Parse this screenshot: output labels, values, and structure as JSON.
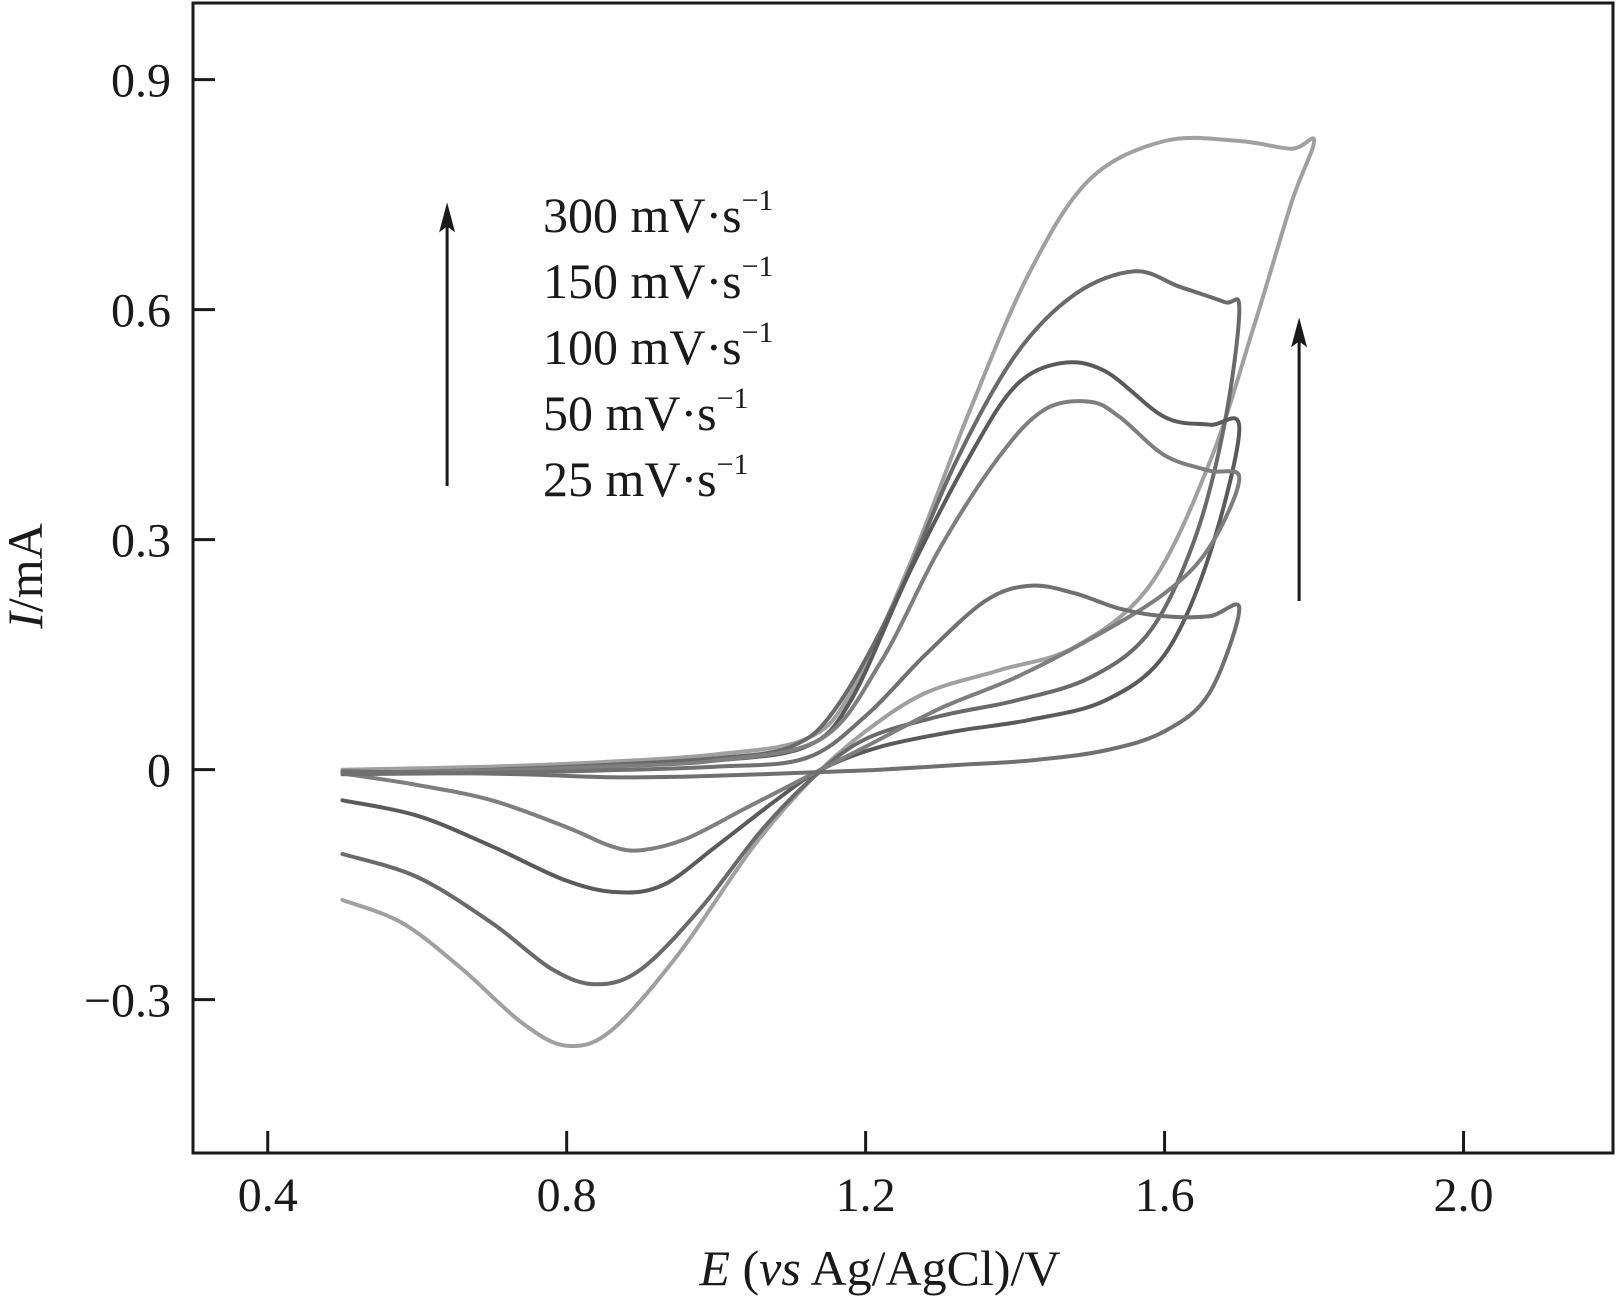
{
  "chart_data": {
    "type": "line",
    "title": "",
    "xlabel": "E (vs Ag/AgCl)/V",
    "xlabel_parts": {
      "italic_e": "E",
      "open": " (",
      "italic_vs": "vs",
      "rest": " Ag/AgCl)/V"
    },
    "ylabel": "I/mA",
    "ylabel_parts": {
      "italic_i": "I",
      "rest": "/mA"
    },
    "xlim": [
      0.3,
      2.2
    ],
    "ylim": [
      -0.5,
      1.0
    ],
    "xticks": [
      0.4,
      0.8,
      1.2,
      1.6,
      2.0
    ],
    "xtick_labels": [
      "0.4",
      "0.8",
      "1.2",
      "1.6",
      "2.0"
    ],
    "yticks": [
      -0.3,
      0,
      0.3,
      0.6,
      0.9
    ],
    "ytick_labels": [
      "−0.3",
      "0",
      "0.3",
      "0.6",
      "0.9"
    ],
    "legend": [
      "300 mV·s⁻¹",
      "150 mV·s⁻¹",
      "100 mV·s⁻¹",
      "50 mV·s⁻¹",
      "25 mV·s⁻¹"
    ],
    "legend_parts": [
      {
        "base": "300 mV·s",
        "sup": "−1"
      },
      {
        "base": "150 mV·s",
        "sup": "−1"
      },
      {
        "base": "100 mV·s",
        "sup": "−1"
      },
      {
        "base": "50 mV·s",
        "sup": "−1"
      },
      {
        "base": "25 mV·s",
        "sup": "−1"
      }
    ],
    "annotations": [
      "arrow indicating increasing scan rate",
      "arrow indicating increasing current"
    ],
    "arrows": [
      {
        "x": 0.64,
        "y_from": 0.37,
        "y_to": 0.74
      },
      {
        "x": 1.78,
        "y_from": 0.22,
        "y_to": 0.59
      }
    ],
    "series": [
      {
        "name": "300 mV·s⁻¹",
        "color": "#a0a0a0",
        "points": [
          [
            0.5,
            -0.17
          ],
          [
            0.58,
            -0.2
          ],
          [
            0.66,
            -0.26
          ],
          [
            0.74,
            -0.33
          ],
          [
            0.8,
            -0.36
          ],
          [
            0.86,
            -0.34
          ],
          [
            0.95,
            -0.24
          ],
          [
            1.05,
            -0.1
          ],
          [
            1.13,
            -0.01
          ],
          [
            1.2,
            0.05
          ],
          [
            1.28,
            0.1
          ],
          [
            1.38,
            0.13
          ],
          [
            1.48,
            0.16
          ],
          [
            1.58,
            0.24
          ],
          [
            1.66,
            0.4
          ],
          [
            1.72,
            0.58
          ],
          [
            1.77,
            0.74
          ],
          [
            1.8,
            0.82
          ],
          [
            1.77,
            0.81
          ],
          [
            1.7,
            0.82
          ],
          [
            1.6,
            0.82
          ],
          [
            1.5,
            0.77
          ],
          [
            1.42,
            0.65
          ],
          [
            1.34,
            0.47
          ],
          [
            1.26,
            0.27
          ],
          [
            1.18,
            0.1
          ],
          [
            1.12,
            0.04
          ],
          [
            1.0,
            0.02
          ],
          [
            0.85,
            0.01
          ],
          [
            0.7,
            0.004
          ],
          [
            0.5,
            0.0
          ]
        ]
      },
      {
        "name": "150 mV·s⁻¹",
        "color": "#6a6a6a",
        "points": [
          [
            0.5,
            -0.11
          ],
          [
            0.6,
            -0.14
          ],
          [
            0.7,
            -0.2
          ],
          [
            0.78,
            -0.26
          ],
          [
            0.84,
            -0.28
          ],
          [
            0.9,
            -0.26
          ],
          [
            0.98,
            -0.18
          ],
          [
            1.06,
            -0.08
          ],
          [
            1.13,
            -0.01
          ],
          [
            1.2,
            0.04
          ],
          [
            1.3,
            0.07
          ],
          [
            1.4,
            0.09
          ],
          [
            1.5,
            0.12
          ],
          [
            1.58,
            0.18
          ],
          [
            1.64,
            0.3
          ],
          [
            1.68,
            0.45
          ],
          [
            1.7,
            0.6
          ],
          [
            1.68,
            0.61
          ],
          [
            1.62,
            0.63
          ],
          [
            1.56,
            0.65
          ],
          [
            1.48,
            0.62
          ],
          [
            1.4,
            0.54
          ],
          [
            1.32,
            0.4
          ],
          [
            1.24,
            0.22
          ],
          [
            1.16,
            0.08
          ],
          [
            1.1,
            0.03
          ],
          [
            1.0,
            0.015
          ],
          [
            0.85,
            0.006
          ],
          [
            0.7,
            0.0
          ],
          [
            0.5,
            -0.005
          ]
        ]
      },
      {
        "name": "100 mV·s⁻¹",
        "color": "#5a5a5a",
        "points": [
          [
            0.5,
            -0.04
          ],
          [
            0.6,
            -0.06
          ],
          [
            0.7,
            -0.1
          ],
          [
            0.8,
            -0.145
          ],
          [
            0.87,
            -0.16
          ],
          [
            0.93,
            -0.15
          ],
          [
            1.0,
            -0.1
          ],
          [
            1.08,
            -0.04
          ],
          [
            1.14,
            0.0
          ],
          [
            1.22,
            0.03
          ],
          [
            1.32,
            0.05
          ],
          [
            1.42,
            0.065
          ],
          [
            1.52,
            0.09
          ],
          [
            1.6,
            0.15
          ],
          [
            1.66,
            0.28
          ],
          [
            1.7,
            0.445
          ],
          [
            1.66,
            0.45
          ],
          [
            1.6,
            0.46
          ],
          [
            1.52,
            0.52
          ],
          [
            1.46,
            0.53
          ],
          [
            1.4,
            0.5
          ],
          [
            1.34,
            0.41
          ],
          [
            1.26,
            0.26
          ],
          [
            1.18,
            0.09
          ],
          [
            1.12,
            0.03
          ],
          [
            1.0,
            0.012
          ],
          [
            0.85,
            0.004
          ],
          [
            0.7,
            -0.002
          ],
          [
            0.5,
            -0.005
          ]
        ]
      },
      {
        "name": "50 mV·s⁻¹",
        "color": "#7e7e7e",
        "points": [
          [
            0.5,
            -0.005
          ],
          [
            0.6,
            -0.02
          ],
          [
            0.7,
            -0.04
          ],
          [
            0.8,
            -0.075
          ],
          [
            0.86,
            -0.1
          ],
          [
            0.9,
            -0.105
          ],
          [
            0.96,
            -0.09
          ],
          [
            1.04,
            -0.05
          ],
          [
            1.12,
            -0.01
          ],
          [
            1.2,
            0.03
          ],
          [
            1.3,
            0.08
          ],
          [
            1.4,
            0.12
          ],
          [
            1.5,
            0.17
          ],
          [
            1.6,
            0.23
          ],
          [
            1.66,
            0.29
          ],
          [
            1.7,
            0.38
          ],
          [
            1.66,
            0.39
          ],
          [
            1.6,
            0.41
          ],
          [
            1.54,
            0.46
          ],
          [
            1.5,
            0.48
          ],
          [
            1.44,
            0.47
          ],
          [
            1.38,
            0.41
          ],
          [
            1.3,
            0.29
          ],
          [
            1.22,
            0.14
          ],
          [
            1.14,
            0.04
          ],
          [
            1.0,
            0.012
          ],
          [
            0.85,
            0.004
          ],
          [
            0.7,
            -0.001
          ],
          [
            0.5,
            -0.005
          ]
        ]
      },
      {
        "name": "25 mV·s⁻¹",
        "color": "#707070",
        "points": [
          [
            0.5,
            -0.002
          ],
          [
            0.62,
            -0.004
          ],
          [
            0.74,
            -0.006
          ],
          [
            0.86,
            -0.01
          ],
          [
            0.96,
            -0.009
          ],
          [
            1.06,
            -0.006
          ],
          [
            1.14,
            -0.003
          ],
          [
            1.22,
            0.0
          ],
          [
            1.32,
            0.006
          ],
          [
            1.42,
            0.012
          ],
          [
            1.52,
            0.025
          ],
          [
            1.6,
            0.05
          ],
          [
            1.66,
            0.1
          ],
          [
            1.7,
            0.21
          ],
          [
            1.66,
            0.2
          ],
          [
            1.6,
            0.2
          ],
          [
            1.54,
            0.21
          ],
          [
            1.48,
            0.23
          ],
          [
            1.42,
            0.24
          ],
          [
            1.36,
            0.22
          ],
          [
            1.28,
            0.15
          ],
          [
            1.2,
            0.07
          ],
          [
            1.12,
            0.015
          ],
          [
            1.0,
            0.004
          ],
          [
            0.85,
            -0.001
          ],
          [
            0.7,
            -0.004
          ],
          [
            0.5,
            -0.006
          ]
        ]
      }
    ]
  }
}
